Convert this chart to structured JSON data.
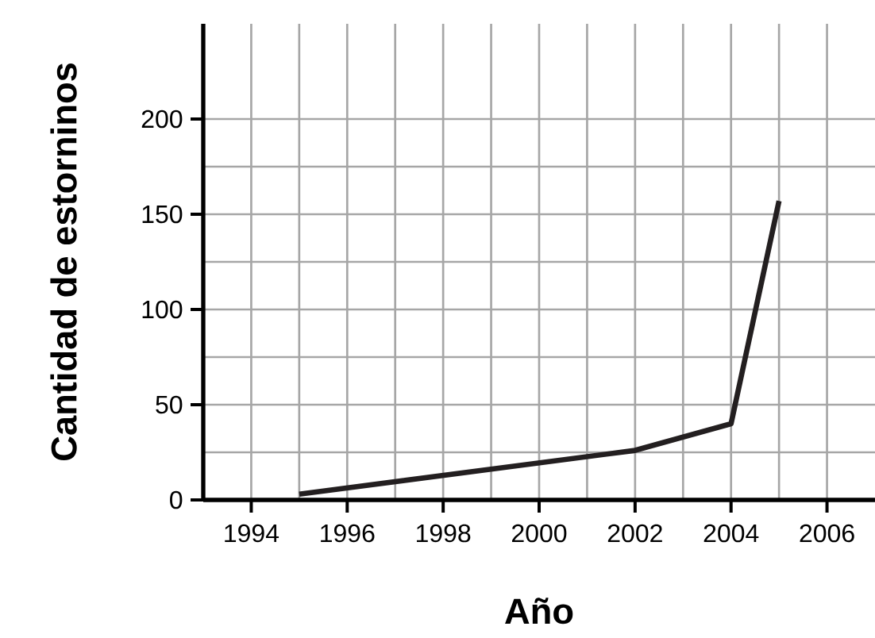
{
  "chart_data": {
    "type": "line",
    "xlabel": "Año",
    "ylabel": "Cantidad de estorninos",
    "x": [
      1995,
      2002,
      2004,
      2005
    ],
    "series": [
      {
        "color": "#231f20",
        "values": [
          3,
          26,
          40,
          157
        ]
      }
    ],
    "xlim": [
      1993,
      2007
    ],
    "ylim": [
      0,
      250
    ],
    "xticks": [
      1994,
      1996,
      1998,
      2000,
      2002,
      2004,
      2006
    ],
    "yticks": [
      0,
      50,
      100,
      150,
      200
    ],
    "grid": true,
    "marker": "none",
    "line_style": "solid"
  }
}
